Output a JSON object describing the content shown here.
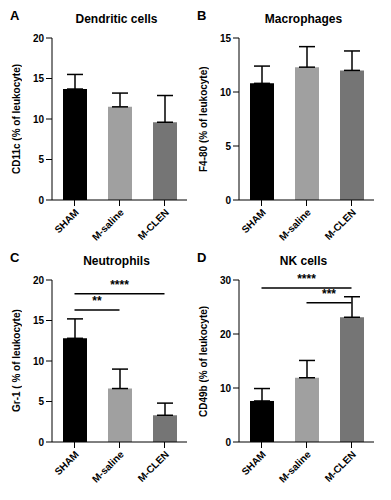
{
  "chart_data": [
    {
      "type": "bar",
      "panel": "A",
      "title": "Dendritic cells",
      "y_label": "CD11c (% of leukocyte)",
      "categories": [
        "SHAM",
        "M-saline",
        "M-CLEN"
      ],
      "values": [
        13.7,
        11.5,
        9.6
      ],
      "errors": [
        1.8,
        1.7,
        3.3
      ],
      "colors": [
        "#000000",
        "#a0a0a0",
        "#757575"
      ],
      "ylim": [
        0,
        20
      ],
      "yticks": [
        0,
        5,
        10,
        15,
        20
      ],
      "grid": false,
      "annotations": []
    },
    {
      "type": "bar",
      "panel": "B",
      "title": "Macrophages",
      "y_label": "F4-80 (% of leukocyte)",
      "categories": [
        "SHAM",
        "M-saline",
        "M-CLEN"
      ],
      "values": [
        10.8,
        12.3,
        12.0
      ],
      "errors": [
        1.6,
        1.9,
        1.8
      ],
      "colors": [
        "#000000",
        "#a0a0a0",
        "#757575"
      ],
      "ylim": [
        0,
        15
      ],
      "yticks": [
        0,
        5,
        10,
        15
      ],
      "grid": false,
      "annotations": []
    },
    {
      "type": "bar",
      "panel": "C",
      "title": "Neutrophils",
      "y_label": "Gr-1 ( % of leukocyte)",
      "categories": [
        "SHAM",
        "M-saline",
        "M-CLEN"
      ],
      "values": [
        12.8,
        6.6,
        3.3
      ],
      "errors": [
        2.4,
        2.4,
        1.5
      ],
      "colors": [
        "#000000",
        "#a0a0a0",
        "#757575"
      ],
      "ylim": [
        0,
        20
      ],
      "yticks": [
        0,
        5,
        10,
        15,
        20
      ],
      "grid": false,
      "annotations": [
        {
          "from": "SHAM",
          "to": "M-saline",
          "y": 16.3,
          "label": "**"
        },
        {
          "from": "SHAM",
          "to": "M-CLEN",
          "y": 18.3,
          "label": "****"
        }
      ]
    },
    {
      "type": "bar",
      "panel": "D",
      "title": "NK cells",
      "y_label": "CD49b (% of leukocyte)",
      "categories": [
        "SHAM",
        "M-saline",
        "M-CLEN"
      ],
      "values": [
        7.6,
        11.9,
        23.1
      ],
      "errors": [
        2.3,
        3.2,
        3.8
      ],
      "colors": [
        "#000000",
        "#a0a0a0",
        "#757575"
      ],
      "ylim": [
        0,
        30
      ],
      "yticks": [
        0,
        10,
        20,
        30
      ],
      "grid": false,
      "annotations": [
        {
          "from": "SHAM",
          "to": "M-CLEN",
          "y": 28.5,
          "label": "****"
        },
        {
          "from": "M-saline",
          "to": "M-CLEN",
          "y": 25.8,
          "label": "***"
        }
      ]
    }
  ]
}
